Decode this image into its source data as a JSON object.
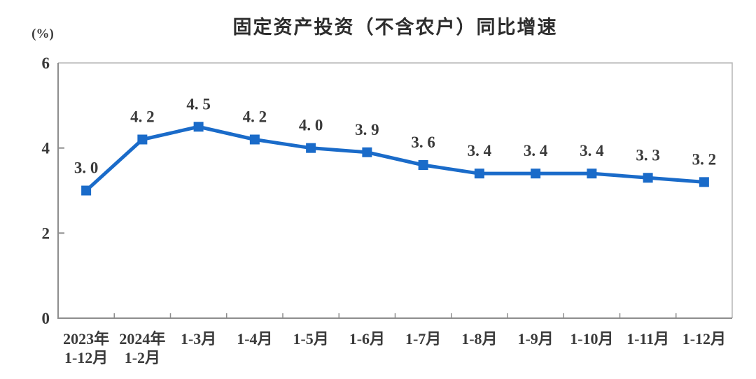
{
  "chart_data": {
    "type": "line",
    "title": "固定资产投资（不含农户）同比增速",
    "unit_label": "(%)",
    "categories": [
      [
        "2023年",
        "1-12月"
      ],
      [
        "2024年",
        "1-2月"
      ],
      [
        "1-3月"
      ],
      [
        "1-4月"
      ],
      [
        "1-5月"
      ],
      [
        "1-6月"
      ],
      [
        "1-7月"
      ],
      [
        "1-8月"
      ],
      [
        "1-9月"
      ],
      [
        "1-10月"
      ],
      [
        "1-11月"
      ],
      [
        "1-12月"
      ]
    ],
    "values": [
      3.0,
      4.2,
      4.5,
      4.2,
      4.0,
      3.9,
      3.6,
      3.4,
      3.4,
      3.4,
      3.3,
      3.2
    ],
    "point_labels": [
      "3. 0",
      "4. 2",
      "4. 5",
      "4. 2",
      "4. 0",
      "3. 9",
      "3. 6",
      "3. 4",
      "3. 4",
      "3. 4",
      "3. 3",
      "3. 2"
    ],
    "y_ticks": [
      0,
      2,
      4,
      6
    ],
    "ylim": [
      0,
      6
    ],
    "xlabel": "",
    "ylabel": "(%)",
    "grid": false,
    "legend": "none",
    "marker": "square",
    "colors": {
      "line": "#1a6bc9",
      "marker": "#1a6bc9",
      "label_text": "#3a3a3a",
      "title_text": "#2d2d2d",
      "axis_dark": "#8d8d8d",
      "axis_light": "#b5b5b5",
      "background": "#ffffff"
    }
  }
}
